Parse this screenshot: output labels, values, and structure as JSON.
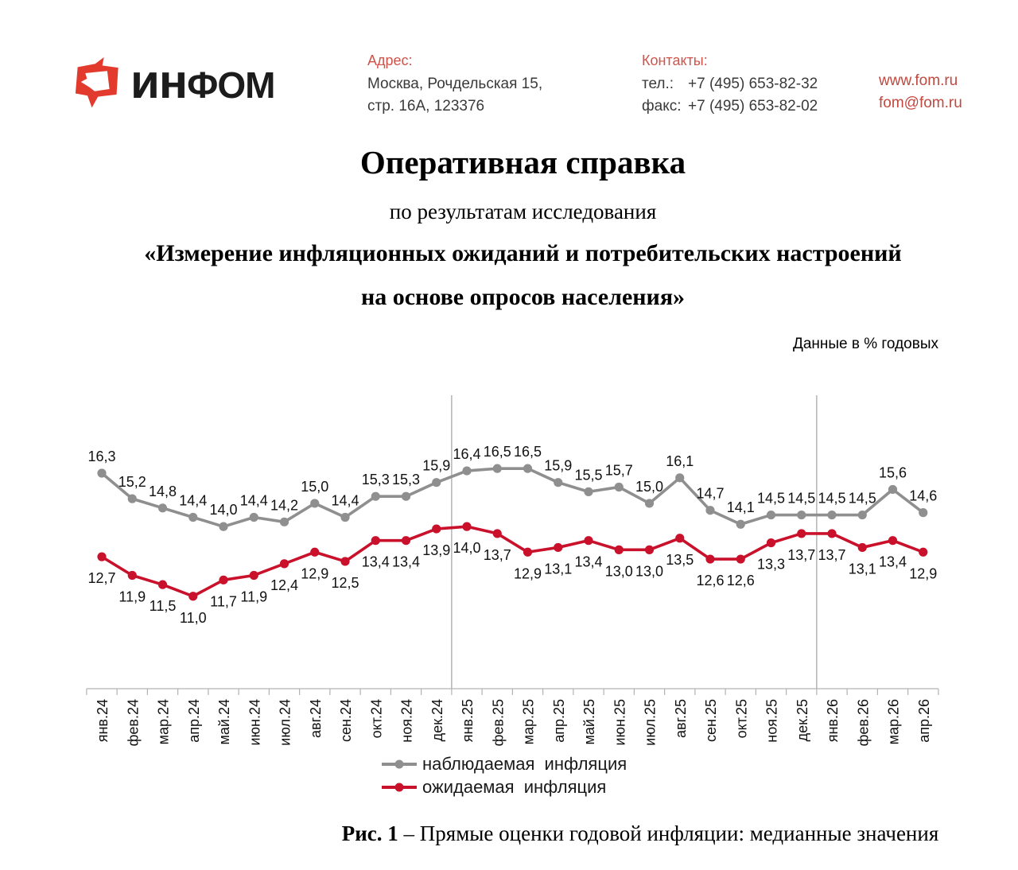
{
  "colors": {
    "brand_red": "#e23b2e",
    "header_label_red": "#d0534a",
    "link_red": "#c1483f",
    "series_observed_gray": "#8f8f8f",
    "series_expected_red": "#c9112b",
    "gridline_gray": "#a8a8a8",
    "axis_gray": "#b3b3b3"
  },
  "header": {
    "logo": {
      "part1": "ин",
      "part2": "ФОМ"
    },
    "address_label": "Адрес:",
    "address_line1": "Москва, Рочдельская 15,",
    "address_line2": "стр. 16А, 123376",
    "contacts_label": "Контакты:",
    "phone_label": "тел.:",
    "phone": "+7 (495) 653-82-32",
    "fax_label": "факс:",
    "fax": "+7 (495) 653-82-02",
    "website": "www.fom.ru",
    "email": "fom@fom.ru"
  },
  "title": {
    "main": "Оперативная справка",
    "subtitle": "по результатам исследования",
    "study_line1": "«Измерение инфляционных ожиданий и потребительских настроений",
    "study_line2": "на основе опросов населения»"
  },
  "chart_data": {
    "type": "line",
    "title": "Прямые оценки годовой инфляции: медианные значения",
    "note": "Данные в % годовых",
    "value_format": "comma_decimal_1",
    "grid": "year-separators-only",
    "legend_position": "bottom",
    "year_separator_after_indices": [
      11,
      23
    ],
    "categories": [
      "янв.24",
      "фев.24",
      "мар.24",
      "апр.24",
      "май.24",
      "июн.24",
      "июл.24",
      "авг.24",
      "сен.24",
      "окт.24",
      "ноя.24",
      "дек.24",
      "янв.25",
      "фев.25",
      "мар.25",
      "апр.25",
      "май.25",
      "июн.25",
      "июл.25",
      "авг.25",
      "сен.25",
      "окт.25",
      "ноя.25",
      "дек.25",
      "янв.26",
      "фев.26",
      "мар.26",
      "апр.26"
    ],
    "series": [
      {
        "name": "наблюдаемая инфляция",
        "color": "#8f8f8f",
        "label_side": "above",
        "values": [
          16.3,
          15.2,
          14.8,
          14.4,
          14.0,
          14.4,
          14.2,
          15.0,
          14.4,
          15.3,
          15.3,
          15.9,
          16.4,
          16.5,
          16.5,
          15.9,
          15.5,
          15.7,
          15.0,
          16.1,
          14.7,
          14.1,
          14.5,
          14.5,
          14.5,
          14.5,
          15.6,
          14.6
        ]
      },
      {
        "name": "ожидаемая инфляция",
        "color": "#c9112b",
        "label_side": "below",
        "values": [
          12.7,
          11.9,
          11.5,
          11.0,
          11.7,
          11.9,
          12.4,
          12.9,
          12.5,
          13.4,
          13.4,
          13.9,
          14.0,
          13.7,
          12.9,
          13.1,
          13.4,
          13.0,
          13.0,
          13.5,
          12.6,
          12.6,
          13.3,
          13.7,
          13.7,
          13.1,
          13.4,
          12.9
        ]
      }
    ]
  },
  "caption": {
    "figure_label": "Рис. 1",
    "text": "– Прямые оценки годовой инфляции: медианные значения"
  }
}
